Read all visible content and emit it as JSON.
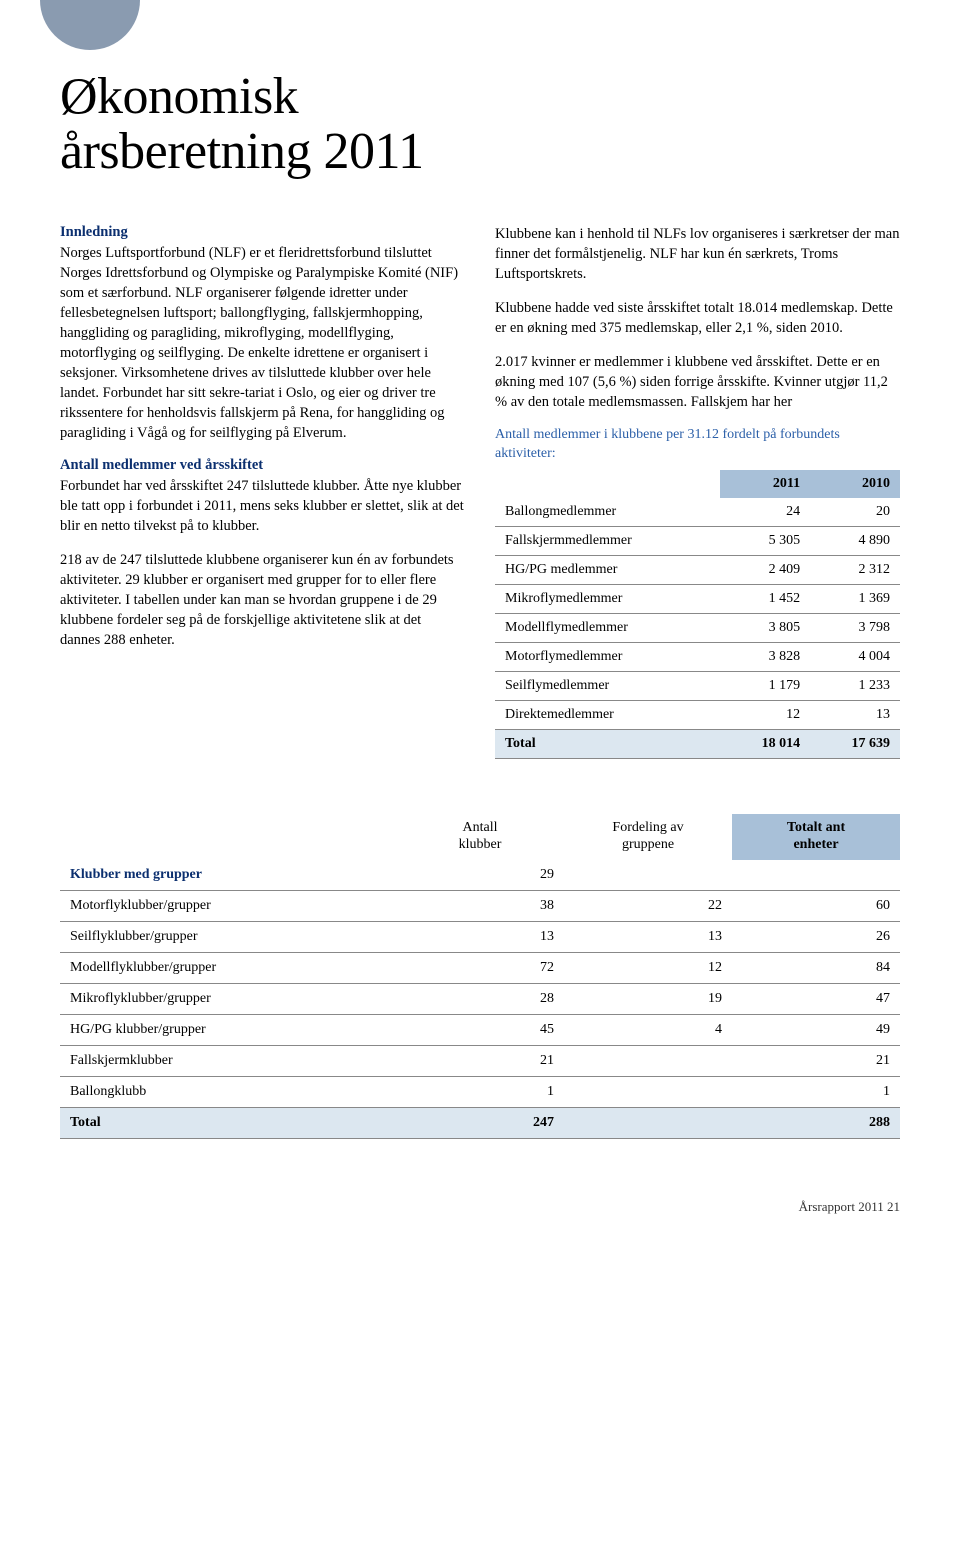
{
  "title_line1": "Økonomisk",
  "title_line2": "årsberetning 2011",
  "left": {
    "h_innledning": "Innledning",
    "p1": "Norges Luftsportforbund (NLF) er et fleridretts­forbund tilsluttet Norges Idrettsforbund og Olympiske og Paralympiske Komité (NIF) som et særforbund. NLF organiserer følgende idretter under fellesbetegnelsen luftsport; ballongflyging, fallskjermhopping, hanggliding og paragliding, mikroflyging, modellflyging, motorflyging og seilflyging. De enkelte idrettene er organisert i seksjoner. Virksomhetene drives av tilsluttede klubber over hele landet. Forbundet har sitt sekre-tariat i Oslo, og eier og driver tre riks­sentere for henholdsvis fallskjerm på Rena, for hanggliding og paragliding i Vågå og for seil­flyging på Elverum.",
    "h_antall": "Antall medlemmer ved årsskiftet",
    "p2": "Forbundet har ved årsskiftet 247 tilsluttede klubber. Åtte nye klubber ble tatt opp i forbundet i 2011, mens seks klubber er slettet, slik at det blir en netto tilvekst på to klubber.",
    "p3": "218 av de 247 tilsluttede klubbene organiserer kun én av forbundets aktiviteter. 29 klubber er orga­nisert med grupper for to eller flere aktiviteter. I tabellen under kan man se hvordan gruppene i de 29 klubbene fordeler seg på de forskjellige aktivitetene slik at det dannes 288 enheter."
  },
  "right": {
    "p1": "Klubbene kan i henhold til NLFs lov organiseres i særkretser der man finner det formålstjenelig. NLF har kun én særkrets, Troms Luftsportskrets.",
    "p2": "Klubbene hadde ved siste årsskiftet totalt 18.014 medlemskap. Dette er en økning med 375 medlemskap, eller 2,1 %, siden 2010.",
    "p3": "2.017 kvinner er medlemmer i klubbene ved årsskiftet. Dette er en økning med 107 (5,6 %) siden forrige årsskifte. Kvinner utgjør 11,2 % av den totale medlemsmassen. Fallskjem har her",
    "table_caption": "Antall medlemmer i klubbene per 31.12 fordelt på forbundets aktiviteter:"
  },
  "member_table": {
    "col_blank": "",
    "col_2011": "2011",
    "col_2010": "2010",
    "rows": [
      {
        "label": "Ballongmedlemmer",
        "y2011": "24",
        "y2010": "20"
      },
      {
        "label": "Fallskjermmedlemmer",
        "y2011": "5 305",
        "y2010": "4 890"
      },
      {
        "label": "HG/PG medlemmer",
        "y2011": "2 409",
        "y2010": "2 312"
      },
      {
        "label": "Mikroflymedlemmer",
        "y2011": "1 452",
        "y2010": "1 369"
      },
      {
        "label": "Modellflymedlemmer",
        "y2011": "3 805",
        "y2010": "3 798"
      },
      {
        "label": "Motorflymedlemmer",
        "y2011": "3 828",
        "y2010": "4 004"
      },
      {
        "label": "Seilflymedlemmer",
        "y2011": "1 179",
        "y2010": "1 233"
      },
      {
        "label": "Direktemedlemmer",
        "y2011": "12",
        "y2010": "13"
      }
    ],
    "total": {
      "label": "Total",
      "y2011": "18 014",
      "y2010": "17 639"
    }
  },
  "clubs_table": {
    "h_blank": "",
    "h_antall_l1": "Antall",
    "h_antall_l2": "klubber",
    "h_fordeling_l1": "Fordeling av",
    "h_fordeling_l2": "gruppene",
    "h_totalt_l1": "Totalt ant",
    "h_totalt_l2": "enheter",
    "head_row": {
      "label": "Klubber med grupper",
      "c1": "29",
      "c2": "",
      "c3": ""
    },
    "rows": [
      {
        "label": "Motorflyklubber/grupper",
        "c1": "38",
        "c2": "22",
        "c3": "60"
      },
      {
        "label": "Seilflyklubber/grupper",
        "c1": "13",
        "c2": "13",
        "c3": "26"
      },
      {
        "label": "Modellflyklubber/grupper",
        "c1": "72",
        "c2": "12",
        "c3": "84"
      },
      {
        "label": "Mikroflyklubber/grupper",
        "c1": "28",
        "c2": "19",
        "c3": "47"
      },
      {
        "label": "HG/PG klubber/grupper",
        "c1": "45",
        "c2": "4",
        "c3": "49"
      },
      {
        "label": "Fallskjermklubber",
        "c1": "21",
        "c2": "",
        "c3": "21"
      },
      {
        "label": "Ballongklubb",
        "c1": "1",
        "c2": "",
        "c3": "1"
      }
    ],
    "total": {
      "label": "Total",
      "c1": "247",
      "c2": "",
      "c3": "288"
    }
  },
  "footer": "Årsrapport 2011    21",
  "colors": {
    "accent": "#0b2f6f",
    "caption": "#2b5fa8",
    "th_bg": "#a8c0d8",
    "total_bg": "#dce7f0",
    "circle": "#8a9bb0"
  }
}
